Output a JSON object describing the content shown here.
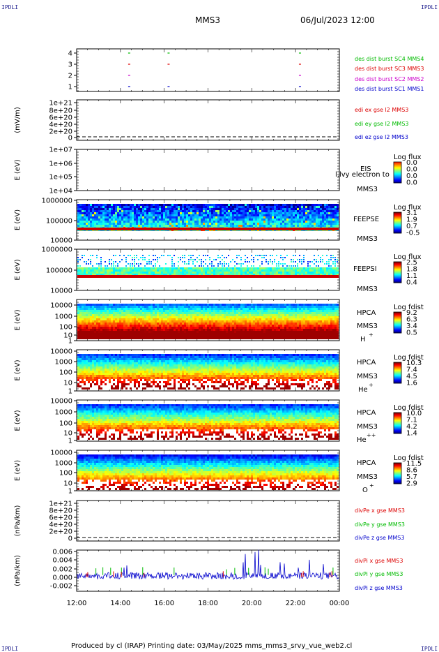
{
  "header": {
    "corner_left": "IPDLI",
    "corner_right": "IPDLI",
    "mission": "MMS3",
    "datetime": "06/Jul/2023 12:00"
  },
  "footer": {
    "text": "Produced by cl (IRAP)   Printing date: 03/May/2025   mms_mms3_srvy_vue_web2.cl",
    "corner_left": "IPDLI",
    "corner_right": "IPDLI"
  },
  "colors": {
    "blue": "#0000cc",
    "magenta": "#cc00cc",
    "red": "#dd0000",
    "green": "#00bb00"
  },
  "chart_data": [
    {
      "type": "scatter",
      "panel": "des_dist_burst",
      "y_ticks": [
        "4",
        "3",
        "2",
        "1"
      ],
      "series": [
        {
          "name": "des dist burst SC1 MMS1",
          "color": "#0000cc",
          "y": 1,
          "x_hours": [
            14.4,
            16.2,
            22.2
          ]
        },
        {
          "name": "des dist burst SC2 MMS2",
          "color": "#cc00cc",
          "y": 2,
          "x_hours": [
            14.4,
            22.2
          ]
        },
        {
          "name": "des dist burst SC3 MMS3",
          "color": "#dd0000",
          "y": 3,
          "x_hours": [
            14.4,
            16.2,
            22.2
          ]
        },
        {
          "name": "des dist burst SC4 MMS4",
          "color": "#00bb00",
          "y": 4,
          "x_hours": [
            14.4,
            16.2,
            22.2
          ]
        }
      ]
    },
    {
      "type": "line",
      "panel": "edi",
      "ylabel": "(mV/m)",
      "y_ticks": [
        "1e+21",
        "8e+20",
        "6e+20",
        "4e+20",
        "2e+20",
        "0"
      ],
      "series": [
        {
          "name": "edi ex gse l2 MMS3",
          "color": "#dd0000"
        },
        {
          "name": "edi ey gse l2 MMS3",
          "color": "#00bb00"
        },
        {
          "name": "edi ez gse l2 MMS3",
          "color": "#0000cc"
        }
      ]
    },
    {
      "type": "heatmap",
      "panel": "eis",
      "ylabel": "E (eV)",
      "y_ticks": [
        "1e+07",
        "1e+06",
        "1e+05",
        "1e+04"
      ],
      "labels": [
        "EIS",
        "l.lvy electron to",
        "MMS3"
      ],
      "colorbar": {
        "title": "Log flux",
        "ticks": [
          "0.0",
          "0.0",
          "0.0",
          "0.0"
        ]
      },
      "data_description": "empty"
    },
    {
      "type": "heatmap",
      "panel": "feeps_e",
      "ylabel": "E (eV)",
      "y_ticks": [
        "1000000",
        "100000",
        "10000"
      ],
      "labels": [
        "FEEPSE",
        "MMS3"
      ],
      "colorbar": {
        "title": "Log flux",
        "ticks": [
          "3.1",
          "1.9",
          "0.7",
          "-0.5"
        ]
      },
      "range": [
        -0.5,
        3.1
      ]
    },
    {
      "type": "heatmap",
      "panel": "feeps_i",
      "ylabel": "E (eV)",
      "y_ticks": [
        "1000000",
        "100000",
        "10000"
      ],
      "labels": [
        "FEEPSI",
        "MMS3"
      ],
      "colorbar": {
        "title": "Log flux",
        "ticks": [
          "2.5",
          "1.8",
          "1.1",
          "0.4"
        ]
      },
      "range": [
        0.4,
        2.5
      ]
    },
    {
      "type": "heatmap",
      "panel": "hpca_h",
      "ylabel": "E (eV)",
      "y_ticks": [
        "10000",
        "1000",
        "100",
        "10",
        "1"
      ],
      "labels": [
        "HPCA",
        "MMS3",
        "H",
        "+"
      ],
      "colorbar": {
        "title": "Log fdist",
        "ticks": [
          "9.2",
          "6.3",
          "3.4",
          "0.5"
        ]
      },
      "range": [
        0.5,
        9.2
      ]
    },
    {
      "type": "heatmap",
      "panel": "hpca_he1",
      "ylabel": "E (eV)",
      "y_ticks": [
        "10000",
        "1000",
        "100",
        "10",
        "1"
      ],
      "labels": [
        "HPCA",
        "MMS3",
        "He",
        "+"
      ],
      "colorbar": {
        "title": "Log fdist",
        "ticks": [
          "10.3",
          "7.4",
          "4.5",
          "1.6"
        ]
      },
      "range": [
        1.6,
        10.3
      ]
    },
    {
      "type": "heatmap",
      "panel": "hpca_he2",
      "ylabel": "E (eV)",
      "y_ticks": [
        "10000",
        "1000",
        "100",
        "10",
        "1"
      ],
      "labels": [
        "HPCA",
        "MMS3",
        "He",
        "++"
      ],
      "colorbar": {
        "title": "Log fdist",
        "ticks": [
          "10.0",
          "7.1",
          "4.2",
          "1.4"
        ]
      },
      "range": [
        1.4,
        10.0
      ]
    },
    {
      "type": "heatmap",
      "panel": "hpca_o",
      "ylabel": "E (eV)",
      "y_ticks": [
        "10000",
        "1000",
        "100",
        "10",
        "1"
      ],
      "labels": [
        "HPCA",
        "MMS3",
        "O",
        "+"
      ],
      "colorbar": {
        "title": "Log fdist",
        "ticks": [
          "11.5",
          "8.6",
          "5.7",
          "2.9"
        ]
      },
      "range": [
        2.9,
        11.5
      ]
    },
    {
      "type": "line",
      "panel": "divpe",
      "ylabel": "(nPa/km)",
      "y_ticks": [
        "1e+21",
        "8e+20",
        "6e+20",
        "4e+20",
        "2e+20",
        "0"
      ],
      "series": [
        {
          "name": "divPe x gse MMS3",
          "color": "#dd0000"
        },
        {
          "name": "divPe y gse MMS3",
          "color": "#00bb00"
        },
        {
          "name": "divPe z gse MMS3",
          "color": "#0000cc"
        }
      ]
    },
    {
      "type": "line",
      "panel": "divpi",
      "ylabel": "(nPa/km)",
      "y_ticks": [
        "0.006",
        "0.004",
        "0.002",
        "0.000",
        "-0.002"
      ],
      "ylim": [
        -0.0025,
        0.0065
      ],
      "series": [
        {
          "name": "divPi x gse MMS3",
          "color": "#dd0000"
        },
        {
          "name": "divPi y gse MMS3",
          "color": "#00bb00"
        },
        {
          "name": "divPi z gse MMS3",
          "color": "#0000cc"
        }
      ]
    }
  ],
  "x_axis": {
    "ticks": [
      "12:00",
      "14:00",
      "16:00",
      "18:00",
      "20:00",
      "22:00",
      "00:00"
    ],
    "range_hours": [
      12,
      24
    ]
  }
}
